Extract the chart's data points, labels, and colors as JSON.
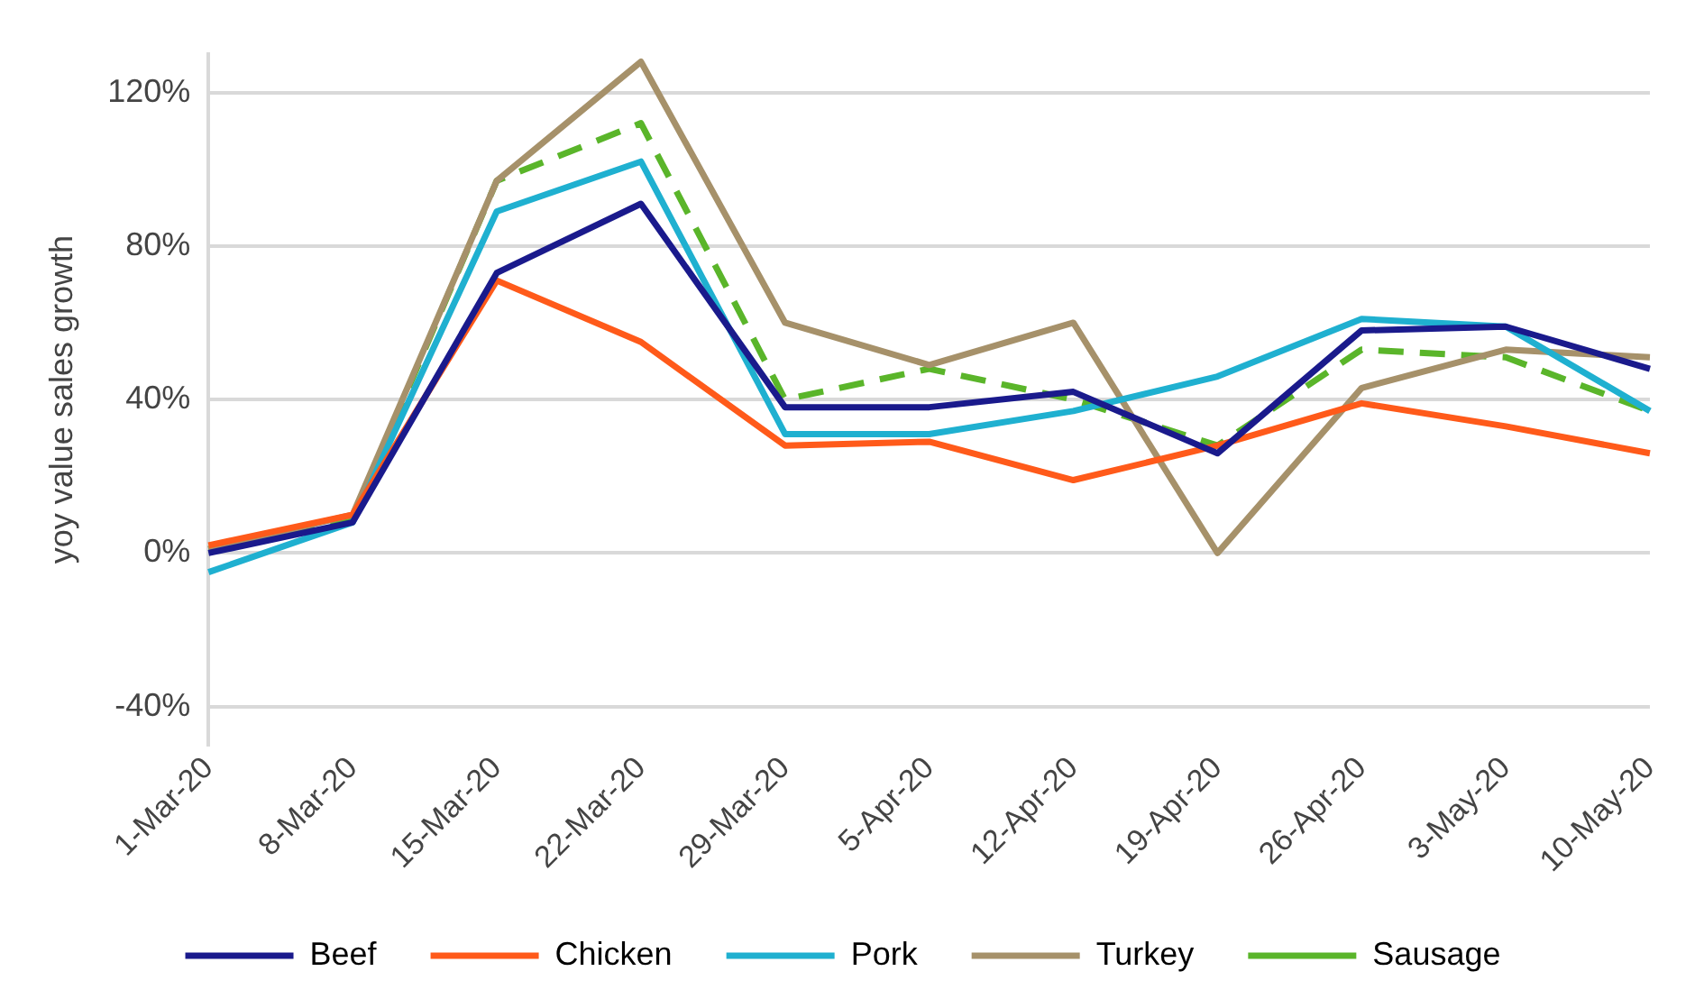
{
  "chart_data": {
    "type": "line",
    "ylabel": "yoy value sales growth",
    "categories": [
      "1-Mar-20",
      "8-Mar-20",
      "15-Mar-20",
      "22-Mar-20",
      "29-Mar-20",
      "5-Apr-20",
      "12-Apr-20",
      "19-Apr-20",
      "26-Apr-20",
      "3-May-20",
      "10-May-20"
    ],
    "series": [
      {
        "name": "Beef",
        "color": "#1a1a8c",
        "line_style": "solid",
        "values": [
          0,
          8,
          73,
          91,
          38,
          38,
          42,
          26,
          58,
          59,
          48
        ]
      },
      {
        "name": "Chicken",
        "color": "#ff5a1a",
        "line_style": "solid",
        "values": [
          2,
          10,
          71,
          55,
          28,
          29,
          19,
          28,
          39,
          33,
          26
        ]
      },
      {
        "name": "Pork",
        "color": "#1fb0d0",
        "line_style": "solid",
        "values": [
          -5,
          8,
          89,
          102,
          31,
          31,
          37,
          46,
          61,
          59,
          37
        ]
      },
      {
        "name": "Turkey",
        "color": "#a6916a",
        "line_style": "solid",
        "values": [
          1,
          10,
          97,
          128,
          60,
          49,
          60,
          0,
          43,
          53,
          51
        ]
      },
      {
        "name": "Sausage",
        "color": "#5ab52a",
        "line_style": "dashed",
        "values": [
          1,
          9,
          97,
          112,
          40,
          48,
          40,
          28,
          53,
          51,
          37
        ]
      }
    ],
    "ylim": [
      -50,
      130
    ],
    "yticks": [
      {
        "value": -40,
        "label": "-40%"
      },
      {
        "value": 0,
        "label": "0%"
      },
      {
        "value": 40,
        "label": "40%"
      },
      {
        "value": 80,
        "label": "80%"
      },
      {
        "value": 120,
        "label": "120%"
      }
    ],
    "grid": "y",
    "legend": "bottom",
    "marker": "none"
  }
}
